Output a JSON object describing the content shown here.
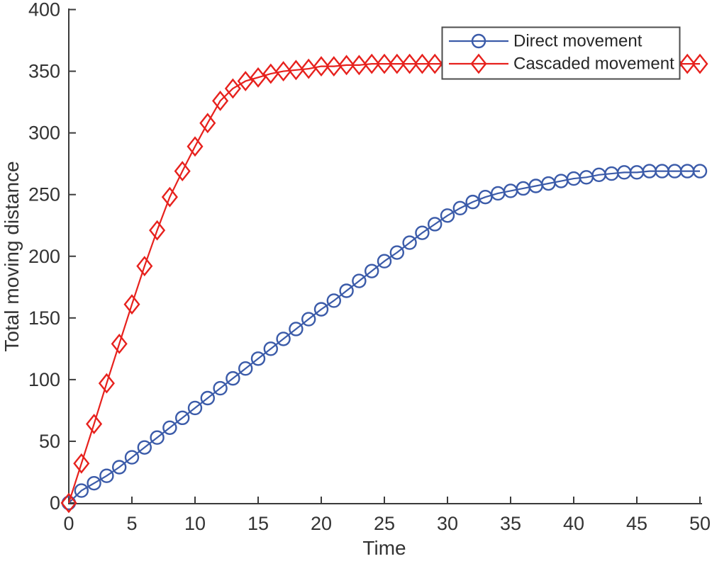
{
  "chart_data": {
    "type": "line",
    "title": "",
    "xlabel": "Time",
    "ylabel": "Total moving distance",
    "xlim": [
      0,
      50
    ],
    "ylim": [
      0,
      400
    ],
    "xticks": [
      0,
      5,
      10,
      15,
      20,
      25,
      30,
      35,
      40,
      45,
      50
    ],
    "yticks": [
      0,
      50,
      100,
      150,
      200,
      250,
      300,
      350,
      400
    ],
    "grid": false,
    "legend_position": "top-right",
    "legend_border": true,
    "x": [
      0,
      1,
      2,
      3,
      4,
      5,
      6,
      7,
      8,
      9,
      10,
      11,
      12,
      13,
      14,
      15,
      16,
      17,
      18,
      19,
      20,
      21,
      22,
      23,
      24,
      25,
      26,
      27,
      28,
      29,
      30,
      31,
      32,
      33,
      34,
      35,
      36,
      37,
      38,
      39,
      40,
      41,
      42,
      43,
      44,
      45,
      46,
      47,
      48,
      49,
      50
    ],
    "series": [
      {
        "name": "Direct movement",
        "marker": "circle",
        "color": "#3B5BA9",
        "values": [
          0,
          10,
          16,
          22,
          29,
          37,
          45,
          53,
          61,
          69,
          77,
          85,
          93,
          101,
          109,
          117,
          125,
          133,
          141,
          149,
          157,
          164,
          172,
          180,
          188,
          196,
          203,
          211,
          219,
          226,
          233,
          239,
          244,
          248,
          251,
          253,
          255,
          257,
          259,
          261,
          263,
          264,
          266,
          267,
          268,
          268,
          269,
          269,
          269,
          269,
          269
        ]
      },
      {
        "name": "Cascaded movement",
        "marker": "diamond",
        "color": "#E7211D",
        "values": [
          0,
          32,
          64,
          97,
          129,
          161,
          192,
          221,
          248,
          269,
          289,
          308,
          326,
          336,
          342,
          345,
          348,
          350,
          351,
          352,
          354,
          354,
          355,
          355,
          356,
          356,
          356,
          356,
          356,
          356,
          356,
          356,
          356,
          356,
          356,
          356,
          356,
          356,
          356,
          356,
          356,
          356,
          356,
          356,
          356,
          356,
          356,
          356,
          356,
          356,
          356
        ]
      }
    ]
  },
  "colors": {
    "background": "#FFFFFF",
    "axis": "#3B3B3B",
    "text": "#333333",
    "legend_border": "#4D4D4D",
    "series_blue": "#3B5BA9",
    "series_red": "#E7211D"
  }
}
